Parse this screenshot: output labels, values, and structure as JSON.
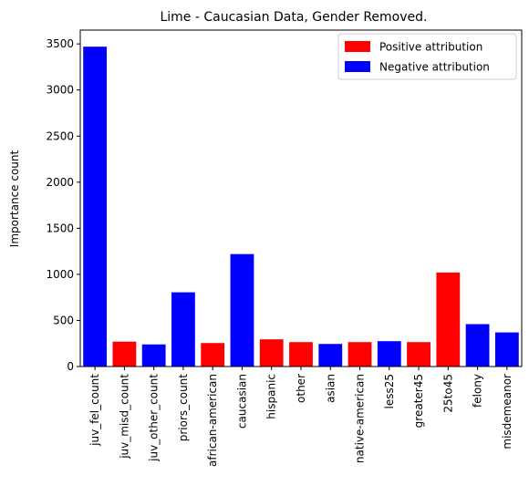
{
  "chart_data": {
    "type": "bar",
    "title": "Lime - Caucasian Data, Gender Removed.",
    "xlabel": "",
    "ylabel": "Importance count",
    "ylim": [
      0,
      3650
    ],
    "yticks": [
      0,
      500,
      1000,
      1500,
      2000,
      2500,
      3000,
      3500
    ],
    "categories": [
      "juv_fel_count",
      "juv_misd_count",
      "juv_other_count",
      "priors_count",
      "african-american",
      "caucasian",
      "hispanic",
      "other",
      "asian",
      "native-american",
      "less25",
      "greater45",
      "25to45",
      "felony",
      "misdemeanor"
    ],
    "values": [
      3470,
      270,
      240,
      805,
      255,
      1220,
      295,
      265,
      245,
      265,
      275,
      265,
      1020,
      460,
      370
    ],
    "attribution": [
      "negative",
      "positive",
      "negative",
      "negative",
      "positive",
      "negative",
      "positive",
      "positive",
      "negative",
      "positive",
      "negative",
      "positive",
      "positive",
      "negative",
      "negative"
    ],
    "colors": {
      "positive": "#ff0000",
      "negative": "#0000ff"
    },
    "legend": {
      "position": "top-right",
      "entries": [
        {
          "label": "Positive attribution",
          "key": "positive"
        },
        {
          "label": "Negative attribution",
          "key": "negative"
        }
      ]
    },
    "grid": false
  }
}
